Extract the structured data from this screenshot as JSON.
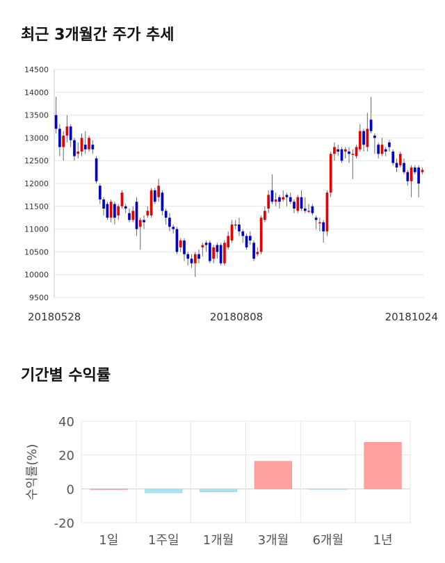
{
  "titles": {
    "price_trend": "최근 3개월간 주가 추세",
    "returns": "기간별 수익률"
  },
  "colors": {
    "up": "#e60000",
    "down": "#0000cc",
    "wick": "#666666",
    "grid": "#e6e6e6",
    "bar_positive": "#ffa0a0",
    "bar_negative": "#a8e4f0"
  },
  "chart_data": [
    {
      "type": "candlestick",
      "title": "최근 3개월간 주가 추세",
      "ylim": [
        9500,
        14500
      ],
      "yticks": [
        9500,
        10000,
        10500,
        11000,
        11500,
        12000,
        12500,
        13000,
        13500,
        14000,
        14500
      ],
      "xtick_labels": [
        "20180528",
        "20180808",
        "20181024"
      ],
      "grid": true,
      "candles": [
        [
          13500,
          13200,
          13900,
          13100
        ],
        [
          13200,
          12800,
          13300,
          12600
        ],
        [
          12800,
          13050,
          13150,
          12500
        ],
        [
          13050,
          13250,
          13500,
          12900
        ],
        [
          13250,
          12950,
          13300,
          12800
        ],
        [
          12950,
          12600,
          13000,
          12500
        ],
        [
          12650,
          12700,
          12900,
          12550
        ],
        [
          12700,
          13000,
          13100,
          12600
        ],
        [
          12850,
          12750,
          13150,
          12650
        ],
        [
          12750,
          13000,
          13050,
          12700
        ],
        [
          12850,
          12750,
          12950,
          12650
        ],
        [
          12550,
          12050,
          12600,
          12000
        ],
        [
          11950,
          11650,
          12000,
          11550
        ],
        [
          11650,
          11450,
          11700,
          11300
        ],
        [
          11550,
          11250,
          11600,
          11200
        ],
        [
          11250,
          11600,
          11650,
          11150
        ],
        [
          11550,
          11250,
          11600,
          11100
        ],
        [
          11300,
          11500,
          11550,
          11200
        ],
        [
          11500,
          11800,
          11850,
          11450
        ],
        [
          11500,
          11450,
          11550,
          11350
        ],
        [
          11350,
          11200,
          11450,
          11150
        ],
        [
          11200,
          11400,
          11500,
          11150
        ],
        [
          11600,
          11000,
          11700,
          10850
        ],
        [
          11050,
          11200,
          11250,
          10550
        ],
        [
          11200,
          11150,
          11300,
          11000
        ],
        [
          11300,
          11400,
          11500,
          11250
        ],
        [
          11300,
          11850,
          11900,
          11250
        ],
        [
          11850,
          11600,
          11900,
          11550
        ],
        [
          11700,
          11950,
          12100,
          11600
        ],
        [
          11800,
          11400,
          11850,
          11300
        ],
        [
          11400,
          11250,
          11450,
          11100
        ],
        [
          11250,
          11050,
          11350,
          10950
        ],
        [
          11050,
          11000,
          11100,
          10900
        ],
        [
          11000,
          10500,
          11050,
          10450
        ],
        [
          10600,
          10750,
          10800,
          10500
        ],
        [
          10750,
          10450,
          10800,
          10300
        ],
        [
          10450,
          10350,
          10500,
          10200
        ],
        [
          10350,
          10250,
          10450,
          10150
        ],
        [
          10250,
          10450,
          10500,
          9950
        ],
        [
          10450,
          10350,
          10550,
          10250
        ],
        [
          10600,
          10650,
          10700,
          10400
        ],
        [
          10700,
          10650,
          10750,
          10500
        ],
        [
          10700,
          10300,
          10750,
          10250
        ],
        [
          10350,
          10600,
          10650,
          10250
        ],
        [
          10650,
          10500,
          10700,
          10350
        ],
        [
          10650,
          10250,
          10700,
          10200
        ],
        [
          10250,
          10700,
          10750,
          10200
        ],
        [
          10600,
          10850,
          10950,
          10550
        ],
        [
          10750,
          11100,
          11200,
          10700
        ],
        [
          11100,
          11100,
          11200,
          11000
        ],
        [
          11100,
          10950,
          11250,
          10850
        ],
        [
          10950,
          10850,
          11000,
          10700
        ],
        [
          10850,
          10600,
          10900,
          10550
        ],
        [
          10850,
          10750,
          10950,
          10650
        ],
        [
          10700,
          10350,
          10750,
          10300
        ],
        [
          10450,
          10500,
          10600,
          10400
        ],
        [
          10500,
          11250,
          11300,
          10450
        ],
        [
          11200,
          11400,
          11500,
          11150
        ],
        [
          11450,
          11750,
          11850,
          11350
        ],
        [
          11850,
          11600,
          12200,
          11550
        ],
        [
          11600,
          11650,
          11800,
          11500
        ],
        [
          11700,
          11600,
          11750,
          11450
        ],
        [
          11650,
          11700,
          11850,
          11600
        ],
        [
          11750,
          11700,
          11800,
          11500
        ],
        [
          11700,
          11600,
          11800,
          11550
        ],
        [
          11600,
          11450,
          11650,
          11350
        ],
        [
          11400,
          11700,
          11750,
          11350
        ],
        [
          11700,
          11450,
          11850,
          11400
        ],
        [
          11450,
          11400,
          11700,
          11350
        ],
        [
          11400,
          11400,
          11550,
          11350
        ],
        [
          11500,
          11350,
          11550,
          11300
        ],
        [
          11250,
          11200,
          11300,
          11000
        ],
        [
          11150,
          11150,
          11250,
          10950
        ],
        [
          11150,
          10950,
          11200,
          10700
        ],
        [
          10950,
          11800,
          11850,
          10850
        ],
        [
          11800,
          12650,
          12700,
          11700
        ],
        [
          12650,
          12800,
          12900,
          12500
        ],
        [
          12750,
          12700,
          12850,
          12600
        ],
        [
          12750,
          12500,
          12800,
          12450
        ],
        [
          12700,
          12750,
          12800,
          12550
        ],
        [
          12700,
          12650,
          12800,
          12450
        ],
        [
          12650,
          12650,
          12750,
          12100
        ],
        [
          12600,
          12800,
          12850,
          12550
        ],
        [
          12750,
          13150,
          13300,
          12700
        ],
        [
          13150,
          12850,
          13200,
          12700
        ],
        [
          12800,
          13200,
          13550,
          12700
        ],
        [
          13400,
          13150,
          13900,
          13100
        ],
        [
          13050,
          13000,
          13100,
          12650
        ],
        [
          12850,
          12650,
          12900,
          12550
        ],
        [
          12650,
          12850,
          13000,
          12600
        ],
        [
          12750,
          12700,
          12800,
          12600
        ],
        [
          12900,
          12800,
          12950,
          12700
        ],
        [
          12700,
          12450,
          12750,
          12400
        ],
        [
          12450,
          12350,
          12550,
          12250
        ],
        [
          12400,
          12650,
          12700,
          12350
        ],
        [
          12450,
          12250,
          12550,
          12200
        ],
        [
          12250,
          12050,
          12300,
          11950
        ],
        [
          12050,
          12350,
          12400,
          11700
        ],
        [
          12350,
          12250,
          12400,
          12200
        ],
        [
          12350,
          12000,
          12400,
          11700
        ],
        [
          12250,
          12300,
          12350,
          12200
        ]
      ]
    },
    {
      "type": "bar",
      "title": "기간별 수익률",
      "ylabel": "수익률(%)",
      "ylim": [
        -20,
        40
      ],
      "yticks": [
        -20,
        0,
        20,
        40
      ],
      "categories": [
        "1일",
        "1주일",
        "1개월",
        "3개월",
        "6개월",
        "1년"
      ],
      "values": [
        0.0,
        -2.4,
        -1.8,
        16.3,
        -0.4,
        27.5
      ],
      "grid": true
    }
  ]
}
